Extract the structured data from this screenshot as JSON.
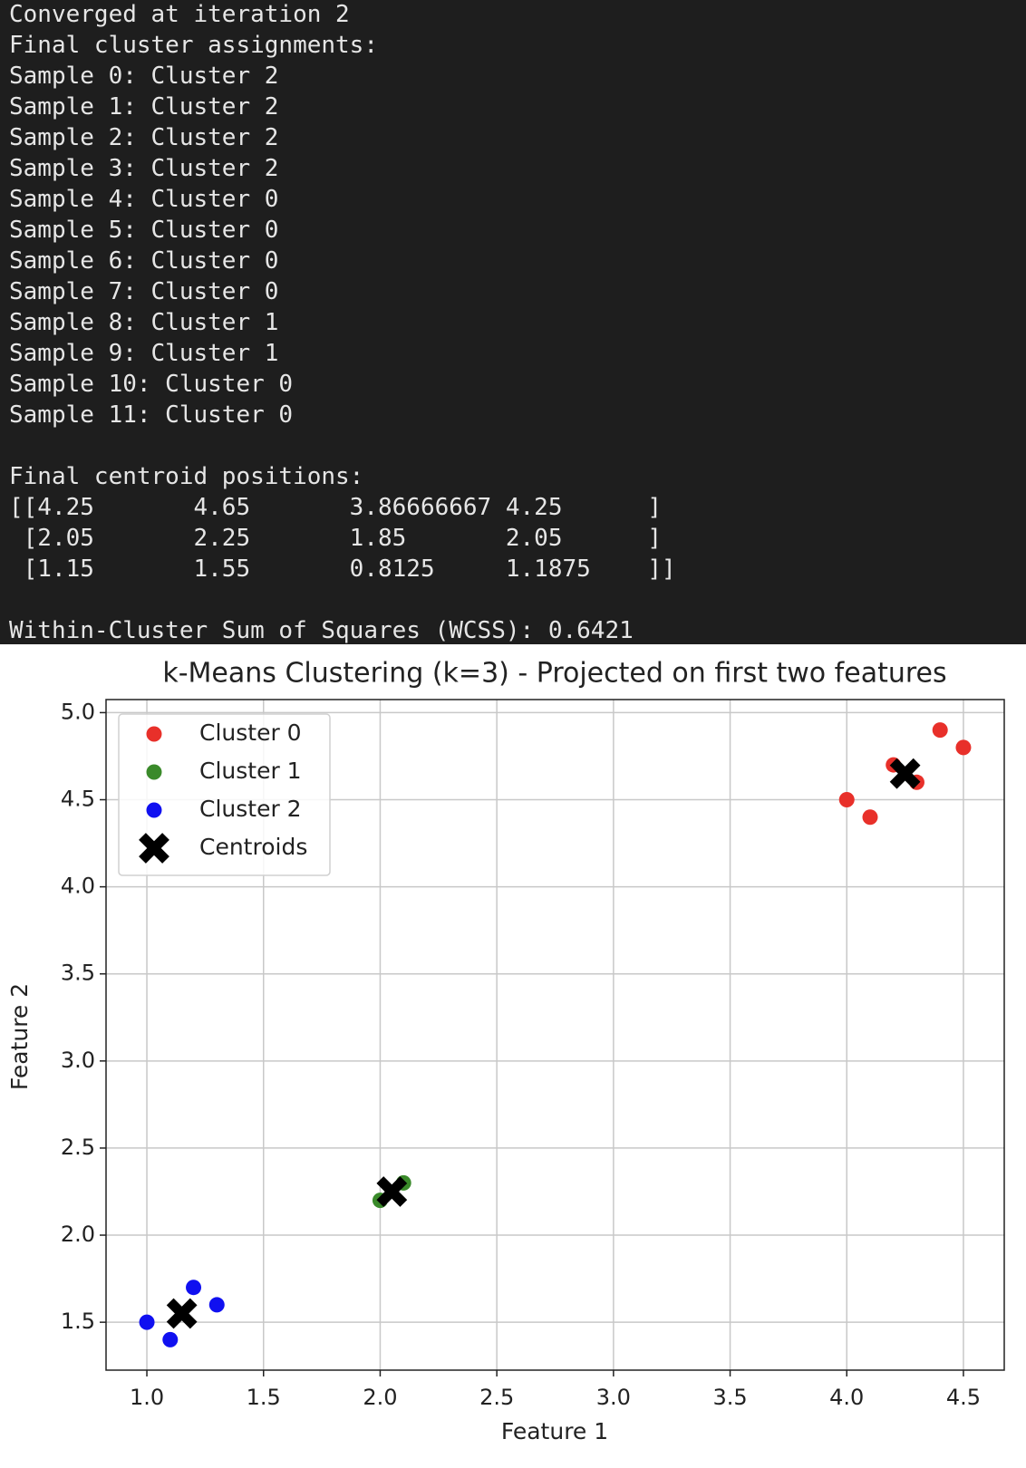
{
  "console": {
    "blocks": [
      [
        "Converged at iteration 2",
        "Final cluster assignments:",
        "Sample 0: Cluster 2",
        "Sample 1: Cluster 2",
        "Sample 2: Cluster 2",
        "Sample 3: Cluster 2",
        "Sample 4: Cluster 0",
        "Sample 5: Cluster 0",
        "Sample 6: Cluster 0",
        "Sample 7: Cluster 0",
        "Sample 8: Cluster 1",
        "Sample 9: Cluster 1",
        "Sample 10: Cluster 0",
        "Sample 11: Cluster 0"
      ],
      [
        "Final centroid positions:",
        "[[4.25       4.65       3.86666667 4.25      ]",
        " [2.05       2.25       1.85       2.05      ]",
        " [1.15       1.55       0.8125     1.1875    ]]"
      ],
      [
        "Within-Cluster Sum of Squares (WCSS): 0.6421"
      ]
    ]
  },
  "chart_data": {
    "type": "scatter",
    "title": "k-Means Clustering (k=3) - Projected on first two features",
    "x_label": "Feature 1",
    "y_label": "Feature 2",
    "series": [
      {
        "name": "Cluster 0",
        "color": "#e8302a",
        "marker": "o",
        "x": [
          4.0,
          4.1,
          4.2,
          4.3,
          4.4,
          4.5
        ],
        "values": [
          4.5,
          4.4,
          4.7,
          4.6,
          4.9,
          4.8
        ]
      },
      {
        "name": "Cluster 1",
        "color": "#3a8a2a",
        "marker": "o",
        "x": [
          2.0,
          2.1
        ],
        "values": [
          2.2,
          2.3
        ]
      },
      {
        "name": "Cluster 2",
        "color": "#1010f0",
        "marker": "o",
        "x": [
          1.0,
          1.1,
          1.2,
          1.3
        ],
        "values": [
          1.5,
          1.4,
          1.7,
          1.6
        ]
      },
      {
        "name": "Centroids",
        "color": "#000000",
        "marker": "X",
        "x": [
          4.25,
          2.05,
          1.15
        ],
        "values": [
          4.65,
          2.25,
          1.55
        ]
      }
    ],
    "xlim": [
      0.825,
      4.675
    ],
    "ylim": [
      1.225,
      5.075
    ],
    "xticks": [
      {
        "value": 1,
        "label": "1.0"
      },
      1.5,
      {
        "value": 2,
        "label": "2.0"
      },
      2.5,
      {
        "value": 3,
        "label": "3.0"
      },
      3.5,
      {
        "value": 4,
        "label": "4.0"
      },
      4.5
    ],
    "yticks": [
      1.5,
      {
        "value": 2,
        "label": "2.0"
      },
      2.5,
      {
        "value": 3,
        "label": "3.0"
      },
      3.5,
      {
        "value": 4,
        "label": "4.0"
      },
      4.5,
      {
        "value": 5,
        "label": "5.0"
      }
    ],
    "grid": true,
    "legend": "upper left"
  }
}
